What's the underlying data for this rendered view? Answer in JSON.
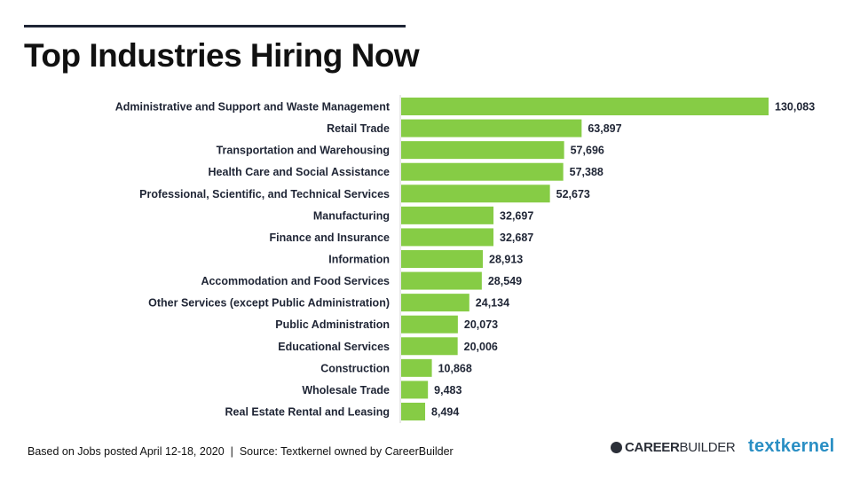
{
  "title": "Top Industries Hiring Now",
  "footer": "Based on Jobs posted April 12-18, 2020  |  Source: Textkernel owned by CareerBuilder",
  "logos": {
    "careerbuilder_bold": "CAREER",
    "careerbuilder_light": "BUILDER",
    "textkernel": "textkernel"
  },
  "chart_data": {
    "type": "bar",
    "orientation": "horizontal",
    "title": "Top Industries Hiring Now",
    "xlabel": "",
    "ylabel": "",
    "bar_color": "#86cc45",
    "categories": [
      "Administrative and Support and Waste Management",
      "Retail Trade",
      "Transportation and Warehousing",
      "Health Care and Social Assistance",
      "Professional, Scientific, and Technical Services",
      "Manufacturing",
      "Finance and Insurance",
      "Information",
      "Accommodation and Food Services",
      "Other Services (except Public Administration)",
      "Public Administration",
      "Educational Services",
      "Construction",
      "Wholesale Trade",
      "Real Estate Rental and Leasing"
    ],
    "values": [
      130083,
      63897,
      57696,
      57388,
      52673,
      32697,
      32687,
      28913,
      28549,
      24134,
      20073,
      20006,
      10868,
      9483,
      8494
    ],
    "labels": [
      "130,083",
      "63,897",
      "57,696",
      "57,388",
      "52,673",
      "32,697",
      "32,687",
      "28,913",
      "28,549",
      "24,134",
      "20,073",
      "20,006",
      "10,868",
      "9,483",
      "8,494"
    ]
  }
}
